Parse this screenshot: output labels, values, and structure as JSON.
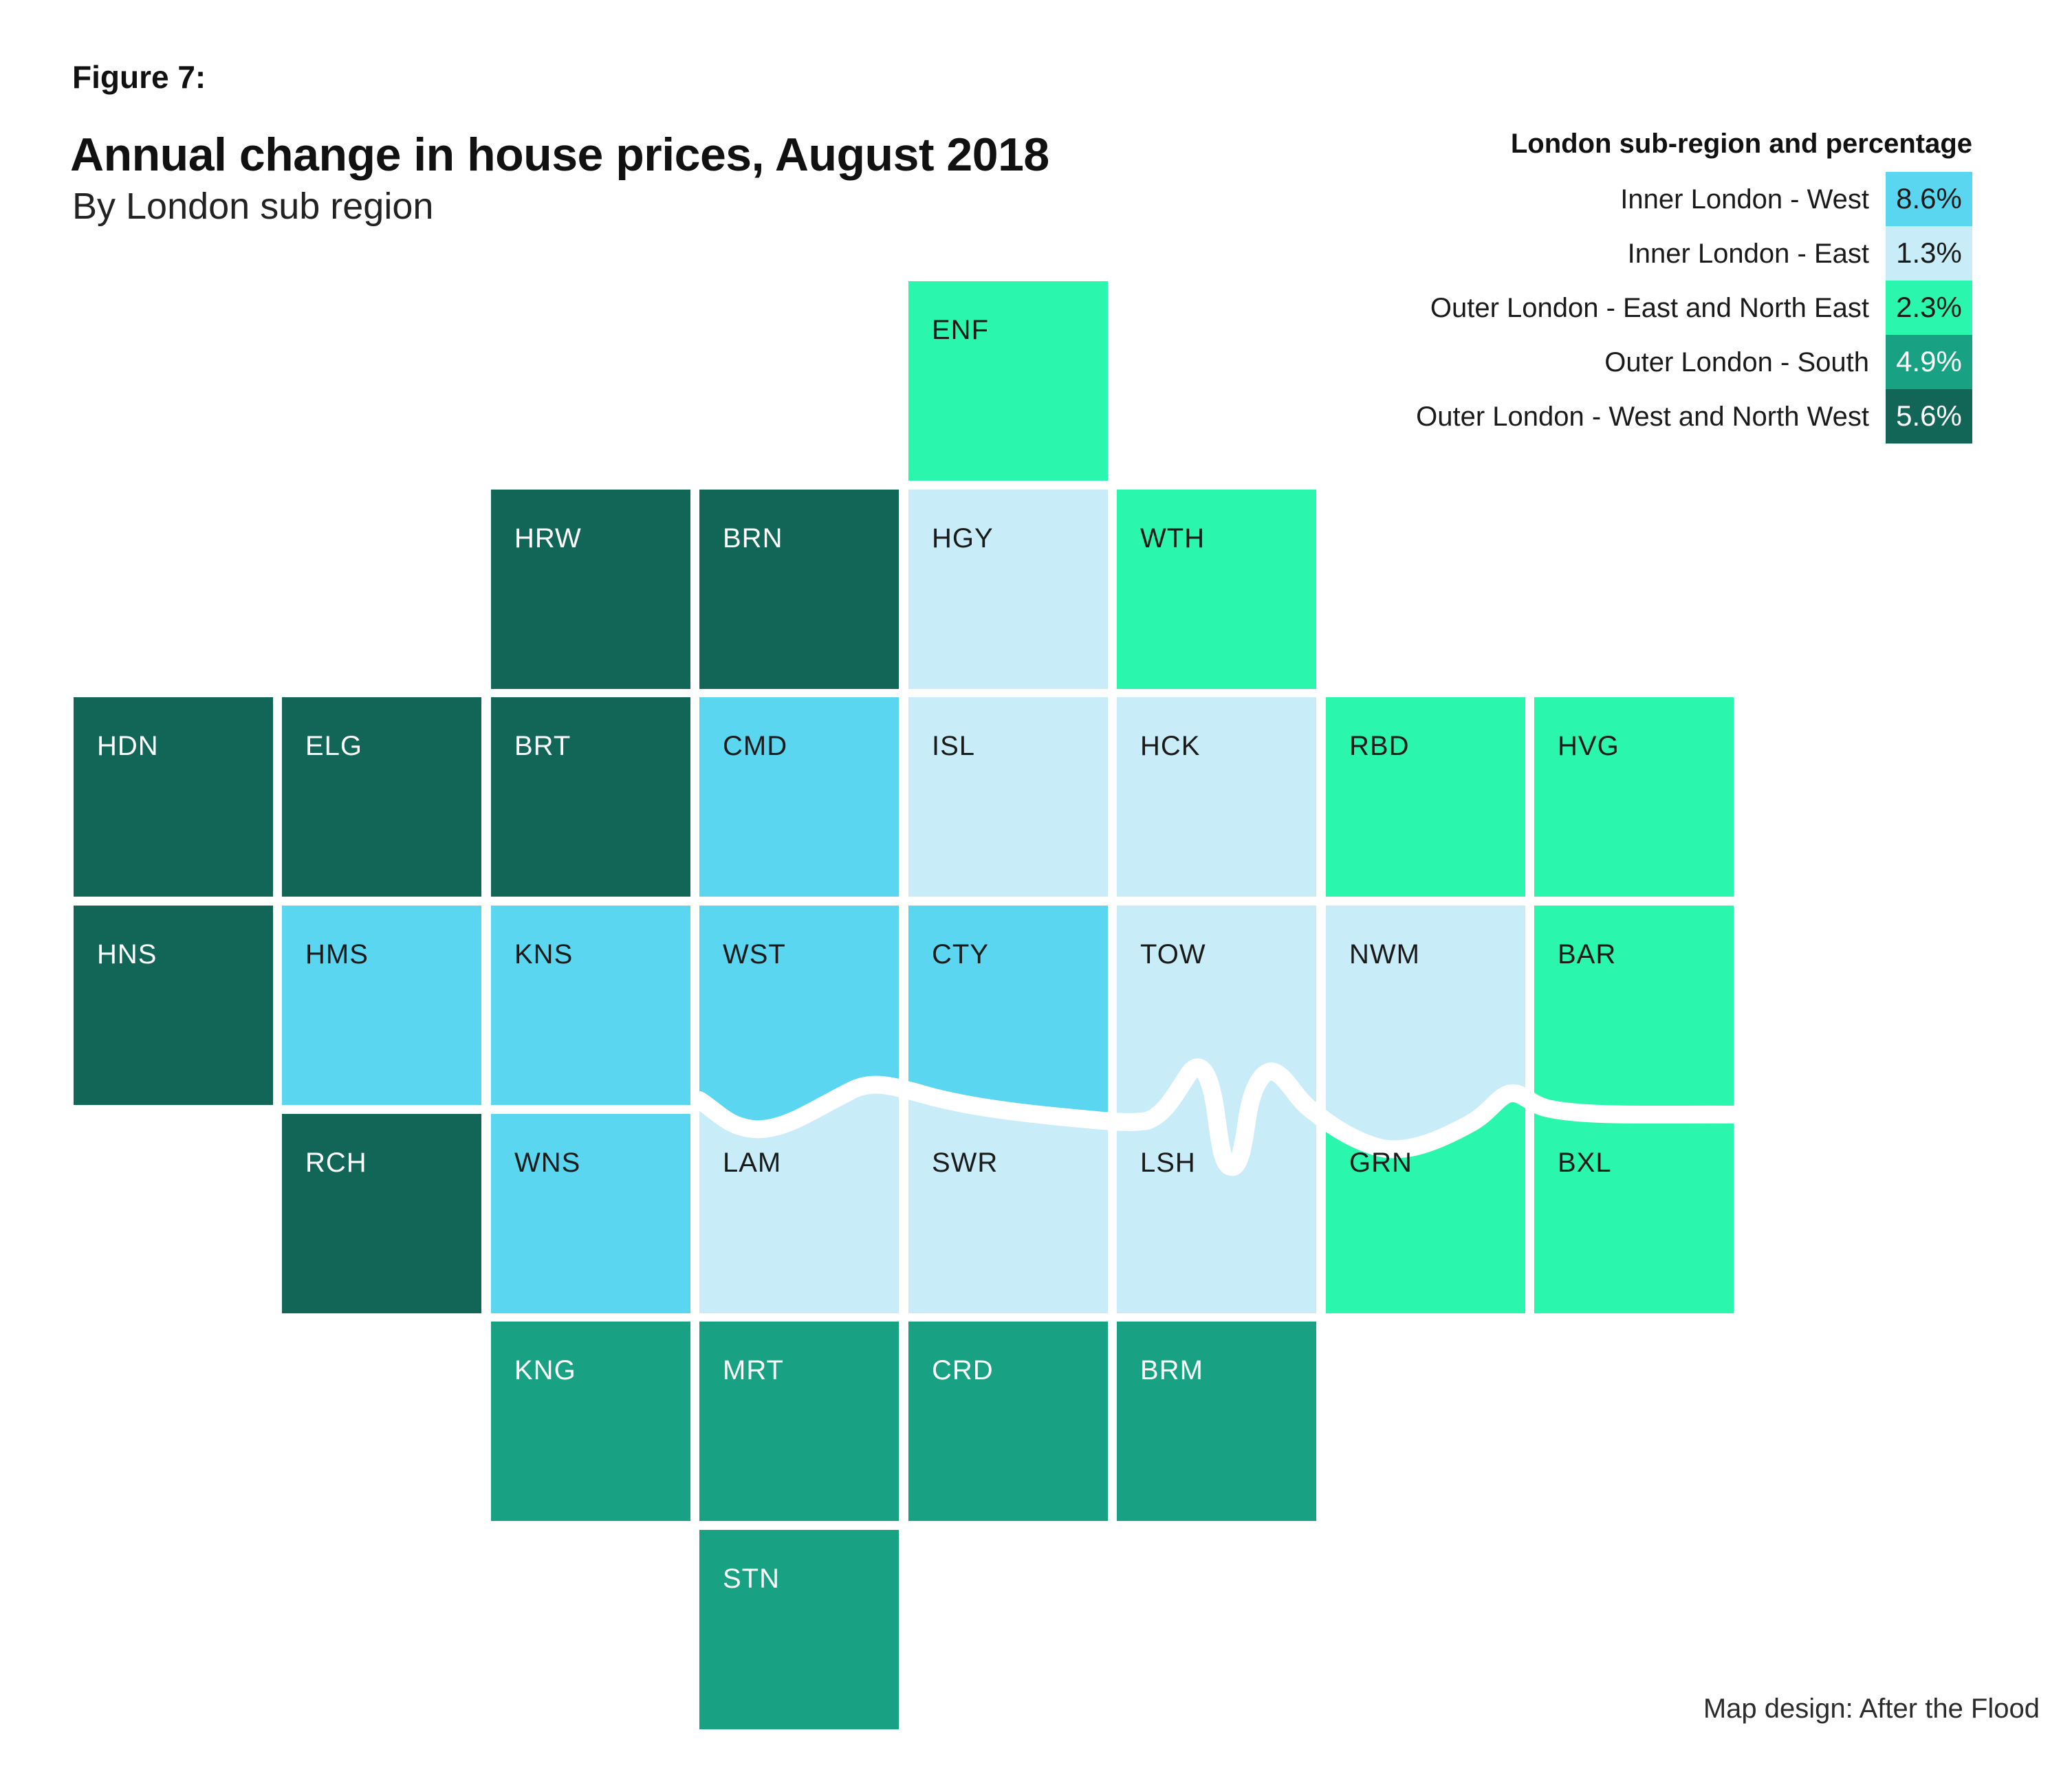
{
  "header": {
    "figure_label": "Figure 7:",
    "title": "Annual change in house prices, August 2018",
    "subtitle": "By London sub region"
  },
  "credit": "Map design: After the Flood",
  "legend": {
    "header": "London sub-region and percentage",
    "items": [
      {
        "id": "inner-west",
        "label": "Inner London - West",
        "value": "8.6%",
        "color": "#5AD6F0",
        "text_color": "#1A1A1A"
      },
      {
        "id": "inner-east",
        "label": "Inner London - East",
        "value": "1.3%",
        "color": "#C8EDF8",
        "text_color": "#1A1A1A"
      },
      {
        "id": "outer-east-ne",
        "label": "Outer London - East and North East",
        "value": "2.3%",
        "color": "#2BF6AE",
        "text_color": "#1A1A1A"
      },
      {
        "id": "outer-south",
        "label": "Outer London - South",
        "value": "4.9%",
        "color": "#18A283",
        "text_color": "#FFFFFF"
      },
      {
        "id": "outer-west-nw",
        "label": "Outer London - West and North West",
        "value": "5.6%",
        "color": "#126658",
        "text_color": "#FFFFFF"
      }
    ]
  },
  "chart_data": {
    "type": "tile-cartogram",
    "title": "Annual change in house prices, August 2018",
    "subtitle": "By London sub region",
    "unit": "annual percentage change in house prices",
    "layout": {
      "legend_position": "top-right",
      "grid_columns": 8,
      "grid_rows": 7,
      "river_overlay": "white Thames line between rows 4 and 5"
    },
    "regions": [
      {
        "id": "inner-west",
        "label": "Inner London - West",
        "value_pct": 8.6
      },
      {
        "id": "inner-east",
        "label": "Inner London - East",
        "value_pct": 1.3
      },
      {
        "id": "outer-east-ne",
        "label": "Outer London - East and North East",
        "value_pct": 2.3
      },
      {
        "id": "outer-south",
        "label": "Outer London - South",
        "value_pct": 4.9
      },
      {
        "id": "outer-west-nw",
        "label": "Outer London - West and North West",
        "value_pct": 5.6
      }
    ],
    "tiles": [
      {
        "code": "ENF",
        "row": 1,
        "col": 5,
        "region": "outer-east-ne"
      },
      {
        "code": "HRW",
        "row": 2,
        "col": 3,
        "region": "outer-west-nw"
      },
      {
        "code": "BRN",
        "row": 2,
        "col": 4,
        "region": "outer-west-nw"
      },
      {
        "code": "HGY",
        "row": 2,
        "col": 5,
        "region": "inner-east"
      },
      {
        "code": "WTH",
        "row": 2,
        "col": 6,
        "region": "outer-east-ne"
      },
      {
        "code": "HDN",
        "row": 3,
        "col": 1,
        "region": "outer-west-nw"
      },
      {
        "code": "ELG",
        "row": 3,
        "col": 2,
        "region": "outer-west-nw"
      },
      {
        "code": "BRT",
        "row": 3,
        "col": 3,
        "region": "outer-west-nw"
      },
      {
        "code": "CMD",
        "row": 3,
        "col": 4,
        "region": "inner-west"
      },
      {
        "code": "ISL",
        "row": 3,
        "col": 5,
        "region": "inner-east"
      },
      {
        "code": "HCK",
        "row": 3,
        "col": 6,
        "region": "inner-east"
      },
      {
        "code": "RBD",
        "row": 3,
        "col": 7,
        "region": "outer-east-ne"
      },
      {
        "code": "HVG",
        "row": 3,
        "col": 8,
        "region": "outer-east-ne"
      },
      {
        "code": "HNS",
        "row": 4,
        "col": 1,
        "region": "outer-west-nw"
      },
      {
        "code": "HMS",
        "row": 4,
        "col": 2,
        "region": "inner-west"
      },
      {
        "code": "KNS",
        "row": 4,
        "col": 3,
        "region": "inner-west"
      },
      {
        "code": "WST",
        "row": 4,
        "col": 4,
        "region": "inner-west"
      },
      {
        "code": "CTY",
        "row": 4,
        "col": 5,
        "region": "inner-west"
      },
      {
        "code": "TOW",
        "row": 4,
        "col": 6,
        "region": "inner-east"
      },
      {
        "code": "NWM",
        "row": 4,
        "col": 7,
        "region": "inner-east"
      },
      {
        "code": "BAR",
        "row": 4,
        "col": 8,
        "region": "outer-east-ne"
      },
      {
        "code": "RCH",
        "row": 5,
        "col": 2,
        "region": "outer-west-nw"
      },
      {
        "code": "WNS",
        "row": 5,
        "col": 3,
        "region": "inner-west"
      },
      {
        "code": "LAM",
        "row": 5,
        "col": 4,
        "region": "inner-east"
      },
      {
        "code": "SWR",
        "row": 5,
        "col": 5,
        "region": "inner-east"
      },
      {
        "code": "LSH",
        "row": 5,
        "col": 6,
        "region": "inner-east"
      },
      {
        "code": "GRN",
        "row": 5,
        "col": 7,
        "region": "outer-east-ne"
      },
      {
        "code": "BXL",
        "row": 5,
        "col": 8,
        "region": "outer-east-ne"
      },
      {
        "code": "KNG",
        "row": 6,
        "col": 3,
        "region": "outer-south"
      },
      {
        "code": "MRT",
        "row": 6,
        "col": 4,
        "region": "outer-south"
      },
      {
        "code": "CRD",
        "row": 6,
        "col": 5,
        "region": "outer-south"
      },
      {
        "code": "BRM",
        "row": 6,
        "col": 6,
        "region": "outer-south"
      },
      {
        "code": "STN",
        "row": 7,
        "col": 4,
        "region": "outer-south"
      }
    ]
  }
}
